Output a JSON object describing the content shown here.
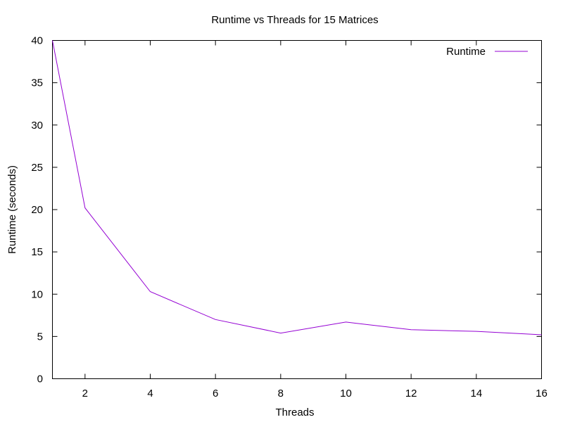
{
  "chart_data": {
    "type": "line",
    "title": "Runtime vs Threads for 15 Matrices",
    "xlabel": "Threads",
    "ylabel": "Runtime (seconds)",
    "xlim": [
      1,
      16
    ],
    "ylim": [
      0,
      40
    ],
    "x_ticks": [
      2,
      4,
      6,
      8,
      10,
      12,
      14,
      16
    ],
    "y_ticks": [
      0,
      5,
      10,
      15,
      20,
      25,
      30,
      35,
      40
    ],
    "grid": false,
    "legend_position": "top-right",
    "series": [
      {
        "name": "Runtime",
        "color": "#9400d3",
        "x": [
          1,
          2,
          4,
          6,
          8,
          10,
          12,
          14,
          16
        ],
        "y": [
          40.0,
          20.2,
          10.3,
          7.0,
          5.4,
          6.7,
          5.8,
          5.6,
          5.2
        ]
      }
    ]
  }
}
